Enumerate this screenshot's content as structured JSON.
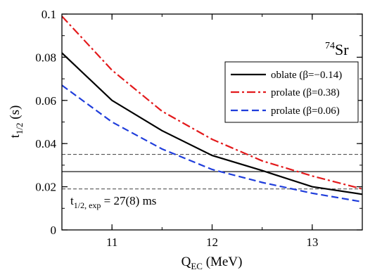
{
  "chart_data": {
    "type": "line",
    "xlabel": {
      "main": "Q",
      "sub": "EC",
      "unit": " (MeV)"
    },
    "ylabel": {
      "main": "t",
      "sub": "1/2",
      "unit": " (s)"
    },
    "xlim": [
      10.5,
      13.5
    ],
    "ylim": [
      0,
      0.1
    ],
    "x_ticks": [
      "11",
      "12",
      "13"
    ],
    "y_ticks": [
      "0",
      "0.02",
      "0.04",
      "0.06",
      "0.08",
      "0.1"
    ],
    "grid": false,
    "legend_position": "top-right",
    "nucleus": {
      "mass": "74",
      "element": "Sr"
    },
    "series": [
      {
        "name": "oblate (β=−0.14)",
        "color": "#000000",
        "dash": "solid",
        "x": [
          10.5,
          11.0,
          11.5,
          12.0,
          12.5,
          13.0,
          13.5
        ],
        "y": [
          0.082,
          0.06,
          0.046,
          0.0345,
          0.0275,
          0.02,
          0.0165
        ]
      },
      {
        "name": "prolate (β=0.38)",
        "color": "#e31a1c",
        "dash": "dashdot",
        "x": [
          10.5,
          11.0,
          11.5,
          12.0,
          12.5,
          13.0,
          13.5
        ],
        "y": [
          0.099,
          0.074,
          0.055,
          0.042,
          0.032,
          0.025,
          0.019
        ]
      },
      {
        "name": "prolate (β=0.06)",
        "color": "#1f3ddb",
        "dash": "dashed",
        "x": [
          10.5,
          11.0,
          11.5,
          12.0,
          12.5,
          13.0,
          13.5
        ],
        "y": [
          0.067,
          0.05,
          0.0375,
          0.028,
          0.022,
          0.017,
          0.013
        ]
      }
    ],
    "reference_lines": [
      {
        "y": 0.027,
        "style": "solid"
      },
      {
        "y": 0.035,
        "style": "dashed"
      },
      {
        "y": 0.019,
        "style": "dashed"
      }
    ],
    "annotation": {
      "main": "t",
      "sub": "1/2, exp",
      "value": " = 27(8) ms"
    }
  }
}
